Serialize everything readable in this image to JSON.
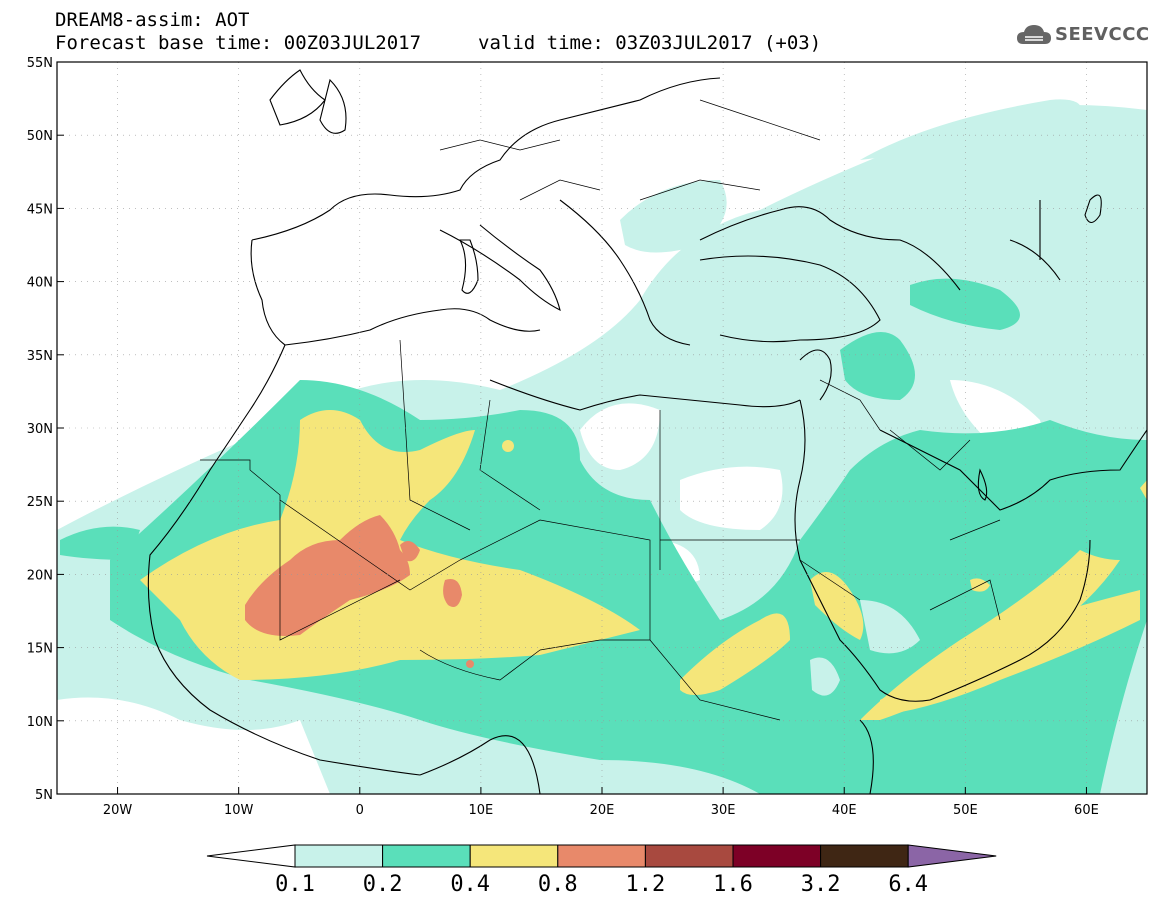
{
  "header": {
    "line1": "DREAM8-assim: AOT",
    "base_time": "Forecast base time: 00Z03JUL2017",
    "valid_time": "valid time: 03Z03JUL2017 (+03)"
  },
  "logo": {
    "text": "SEEVCCC",
    "icon": "cloud-icon"
  },
  "map": {
    "lon_ticks": [
      "20W",
      "10W",
      "0",
      "10E",
      "20E",
      "30E",
      "40E",
      "50E",
      "60E"
    ],
    "lat_ticks": [
      "55N",
      "50N",
      "45N",
      "40N",
      "35N",
      "30N",
      "25N",
      "20N",
      "15N",
      "10N",
      "5N"
    ],
    "extent": {
      "lon": [
        -25,
        65
      ],
      "lat": [
        5,
        55
      ]
    }
  },
  "colorbar": {
    "labels": [
      "0.1",
      "0.2",
      "0.4",
      "0.8",
      "1.2",
      "1.6",
      "3.2",
      "6.4"
    ],
    "colors": [
      "#c8f2ea",
      "#5adfba",
      "#f5e67a",
      "#e8896a",
      "#a8493f",
      "#7d0026",
      "#3f2614",
      "#8b65a6"
    ]
  }
}
